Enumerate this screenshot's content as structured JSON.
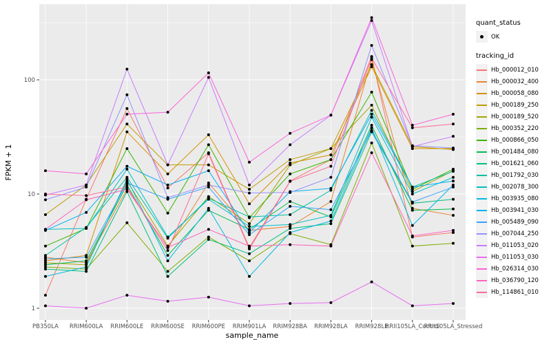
{
  "chart_data": {
    "type": "line",
    "title": "",
    "xlabel": "sample_name",
    "ylabel": "FPKM + 1",
    "y_scale": "log10",
    "y_ticks": [
      1,
      10,
      100
    ],
    "y_minor_ticks": [
      3.1623,
      31.623,
      316.23
    ],
    "ylim": [
      1,
      460
    ],
    "grid": true,
    "legend_position": "right",
    "x_categories": [
      "PB350LA",
      "RRIM600LA",
      "RRIM600LE",
      "RRIM600SE",
      "RRIM600PE",
      "RRIM901LA",
      "RRIM928BA",
      "RRIM928LA",
      "RRIM928LE",
      "RRII105LA_Control",
      "RRII105LA_Stressed"
    ],
    "series": [
      {
        "name": "Hb_000012_010",
        "color": "#F8766D",
        "values": [
          1.3,
          9,
          56,
          11.3,
          23,
          3.4,
          13,
          20,
          160,
          4.2,
          4.6
        ]
      },
      {
        "name": "Hb_000032_400",
        "color": "#EA8331",
        "values": [
          2.8,
          2.5,
          11,
          3.4,
          12.5,
          4.8,
          5.2,
          8.6,
          150,
          7.5,
          6.5
        ]
      },
      {
        "name": "Hb_000058_080",
        "color": "#D89000",
        "values": [
          2.6,
          2.9,
          35,
          15,
          33,
          8.2,
          18.7,
          22,
          130,
          25,
          25
        ]
      },
      {
        "name": "Hb_000189_250",
        "color": "#C09B00",
        "values": [
          6.6,
          12,
          41,
          18,
          18,
          11,
          20,
          25,
          136,
          26,
          24.5
        ]
      },
      {
        "name": "Hb_000189_520",
        "color": "#A3A500",
        "values": [
          2.5,
          2.4,
          13,
          3.5,
          9.5,
          5.5,
          18,
          25,
          60,
          10.5,
          16
        ]
      },
      {
        "name": "Hb_000352_220",
        "color": "#7CAE00",
        "values": [
          2.3,
          2.2,
          5.6,
          2.1,
          4.2,
          2.6,
          4.5,
          3.6,
          28,
          3.5,
          3.7
        ]
      },
      {
        "name": "Hb_000866_050",
        "color": "#39B600",
        "values": [
          3.5,
          5,
          25,
          6.8,
          27,
          6.2,
          15,
          20,
          78,
          11,
          16.5
        ]
      },
      {
        "name": "Hb_001484_080",
        "color": "#00BB4E",
        "values": [
          2.4,
          2.6,
          12,
          2.9,
          7.2,
          4.9,
          8.6,
          6.3,
          40,
          7.2,
          7.4
        ]
      },
      {
        "name": "Hb_001621_060",
        "color": "#00BF7D",
        "values": [
          2.2,
          2.1,
          10.5,
          1.9,
          4.0,
          3.0,
          5.0,
          5.5,
          35,
          8.3,
          9.0
        ]
      },
      {
        "name": "Hb_001792_030",
        "color": "#00C1A3",
        "values": [
          2.9,
          5.1,
          14,
          4.1,
          9.2,
          6.3,
          6.6,
          10.8,
          54,
          11.5,
          15.8
        ]
      },
      {
        "name": "Hb_002078_300",
        "color": "#00BFC4",
        "values": [
          4.9,
          5.0,
          16.5,
          4.2,
          9.0,
          5.2,
          5.4,
          6.5,
          47,
          10,
          14
        ]
      },
      {
        "name": "Hb_003935_080",
        "color": "#00BAE0",
        "values": [
          1.9,
          2.3,
          13.5,
          2.6,
          7.5,
          1.9,
          4.6,
          5.8,
          38,
          5.3,
          12
        ]
      },
      {
        "name": "Hb_003941_030",
        "color": "#00B0F6",
        "values": [
          4.8,
          6.9,
          17.5,
          12,
          16,
          4.6,
          10.5,
          11.2,
          50,
          11.5,
          13
        ]
      },
      {
        "name": "Hb_005489_090",
        "color": "#35A2FF",
        "values": [
          2.7,
          2.8,
          12.5,
          9.0,
          11.5,
          4.4,
          7.8,
          7.3,
          36,
          8.5,
          11.5
        ]
      },
      {
        "name": "Hb_007044_250",
        "color": "#9590FF",
        "values": [
          8.9,
          11.5,
          74,
          9.3,
          12,
          10.2,
          10.3,
          14,
          200,
          26.5,
          25.3
        ]
      },
      {
        "name": "Hb_011053_020",
        "color": "#C77CFF",
        "values": [
          9.8,
          12,
          124,
          18,
          105,
          12,
          27,
          49,
          330,
          26,
          32
        ]
      },
      {
        "name": "Hb_011053_030",
        "color": "#E76BF3",
        "values": [
          1.05,
          1.0,
          1.3,
          1.15,
          1.25,
          1.05,
          1.1,
          1.12,
          1.7,
          1.05,
          1.1
        ]
      },
      {
        "name": "Hb_026314_030",
        "color": "#FA62DB",
        "values": [
          16,
          15,
          50,
          52,
          115,
          19,
          34,
          49,
          350,
          40,
          50
        ]
      },
      {
        "name": "Hb_036790_120",
        "color": "#FF62BC",
        "values": [
          4.9,
          8.9,
          11,
          3.4,
          4.9,
          3.5,
          3.6,
          3.5,
          23,
          4.3,
          4.8
        ]
      },
      {
        "name": "Hb_114861_010",
        "color": "#FF6A98",
        "values": [
          10,
          9.7,
          11.5,
          3.2,
          22.5,
          3.3,
          12.9,
          17.5,
          155,
          38,
          41
        ]
      }
    ]
  },
  "legend": {
    "quant_status_title": "quant_status",
    "quant_status_items": [
      {
        "label": "OK"
      }
    ],
    "tracking_id_title": "tracking_id"
  },
  "colors": {
    "panel_bg": "#EBEBEB",
    "grid": "#FFFFFF",
    "axis_text": "#4D4D4D",
    "tick_mark": "#333333",
    "point": "#000000",
    "legend_key_bg": "#F2F2F2"
  }
}
